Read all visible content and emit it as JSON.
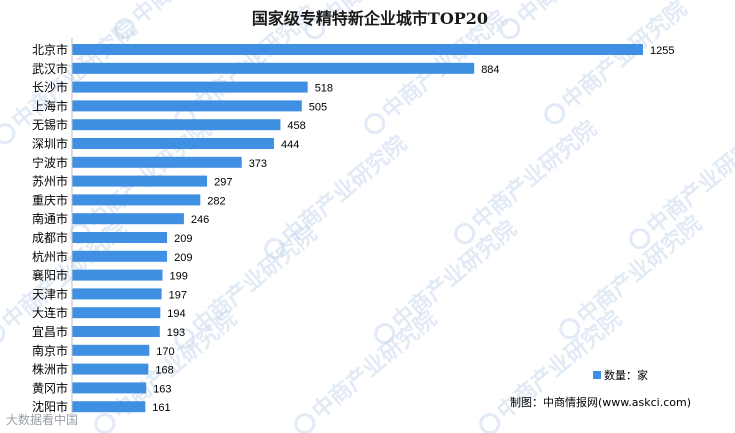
{
  "watermark": {
    "text": "中商产业研究院",
    "corner_text": "大数据看中国"
  },
  "legend": {
    "label": "数量：家",
    "color": "#3f8fe3"
  },
  "source": "制图：中商情报网(www.askci.com)",
  "chart_data": {
    "type": "bar",
    "orientation": "horizontal",
    "title": "国家级专精特新企业城市TOP20",
    "categories": [
      "北京市",
      "武汉市",
      "长沙市",
      "上海市",
      "无锡市",
      "深圳市",
      "宁波市",
      "苏州市",
      "重庆市",
      "南通市",
      "成都市",
      "杭州市",
      "襄阳市",
      "天津市",
      "大连市",
      "宜昌市",
      "南京市",
      "株洲市",
      "黄冈市",
      "沈阳市"
    ],
    "series": [
      {
        "name": "数量：家",
        "color": "#3f8fe3",
        "values": [
          1255,
          884,
          518,
          505,
          458,
          444,
          373,
          297,
          282,
          246,
          209,
          209,
          199,
          197,
          194,
          193,
          170,
          168,
          163,
          161
        ]
      }
    ],
    "xlim": [
      0,
      1300
    ],
    "xlabel": "",
    "ylabel": "",
    "grid": false,
    "legend_position": "bottom-right"
  }
}
